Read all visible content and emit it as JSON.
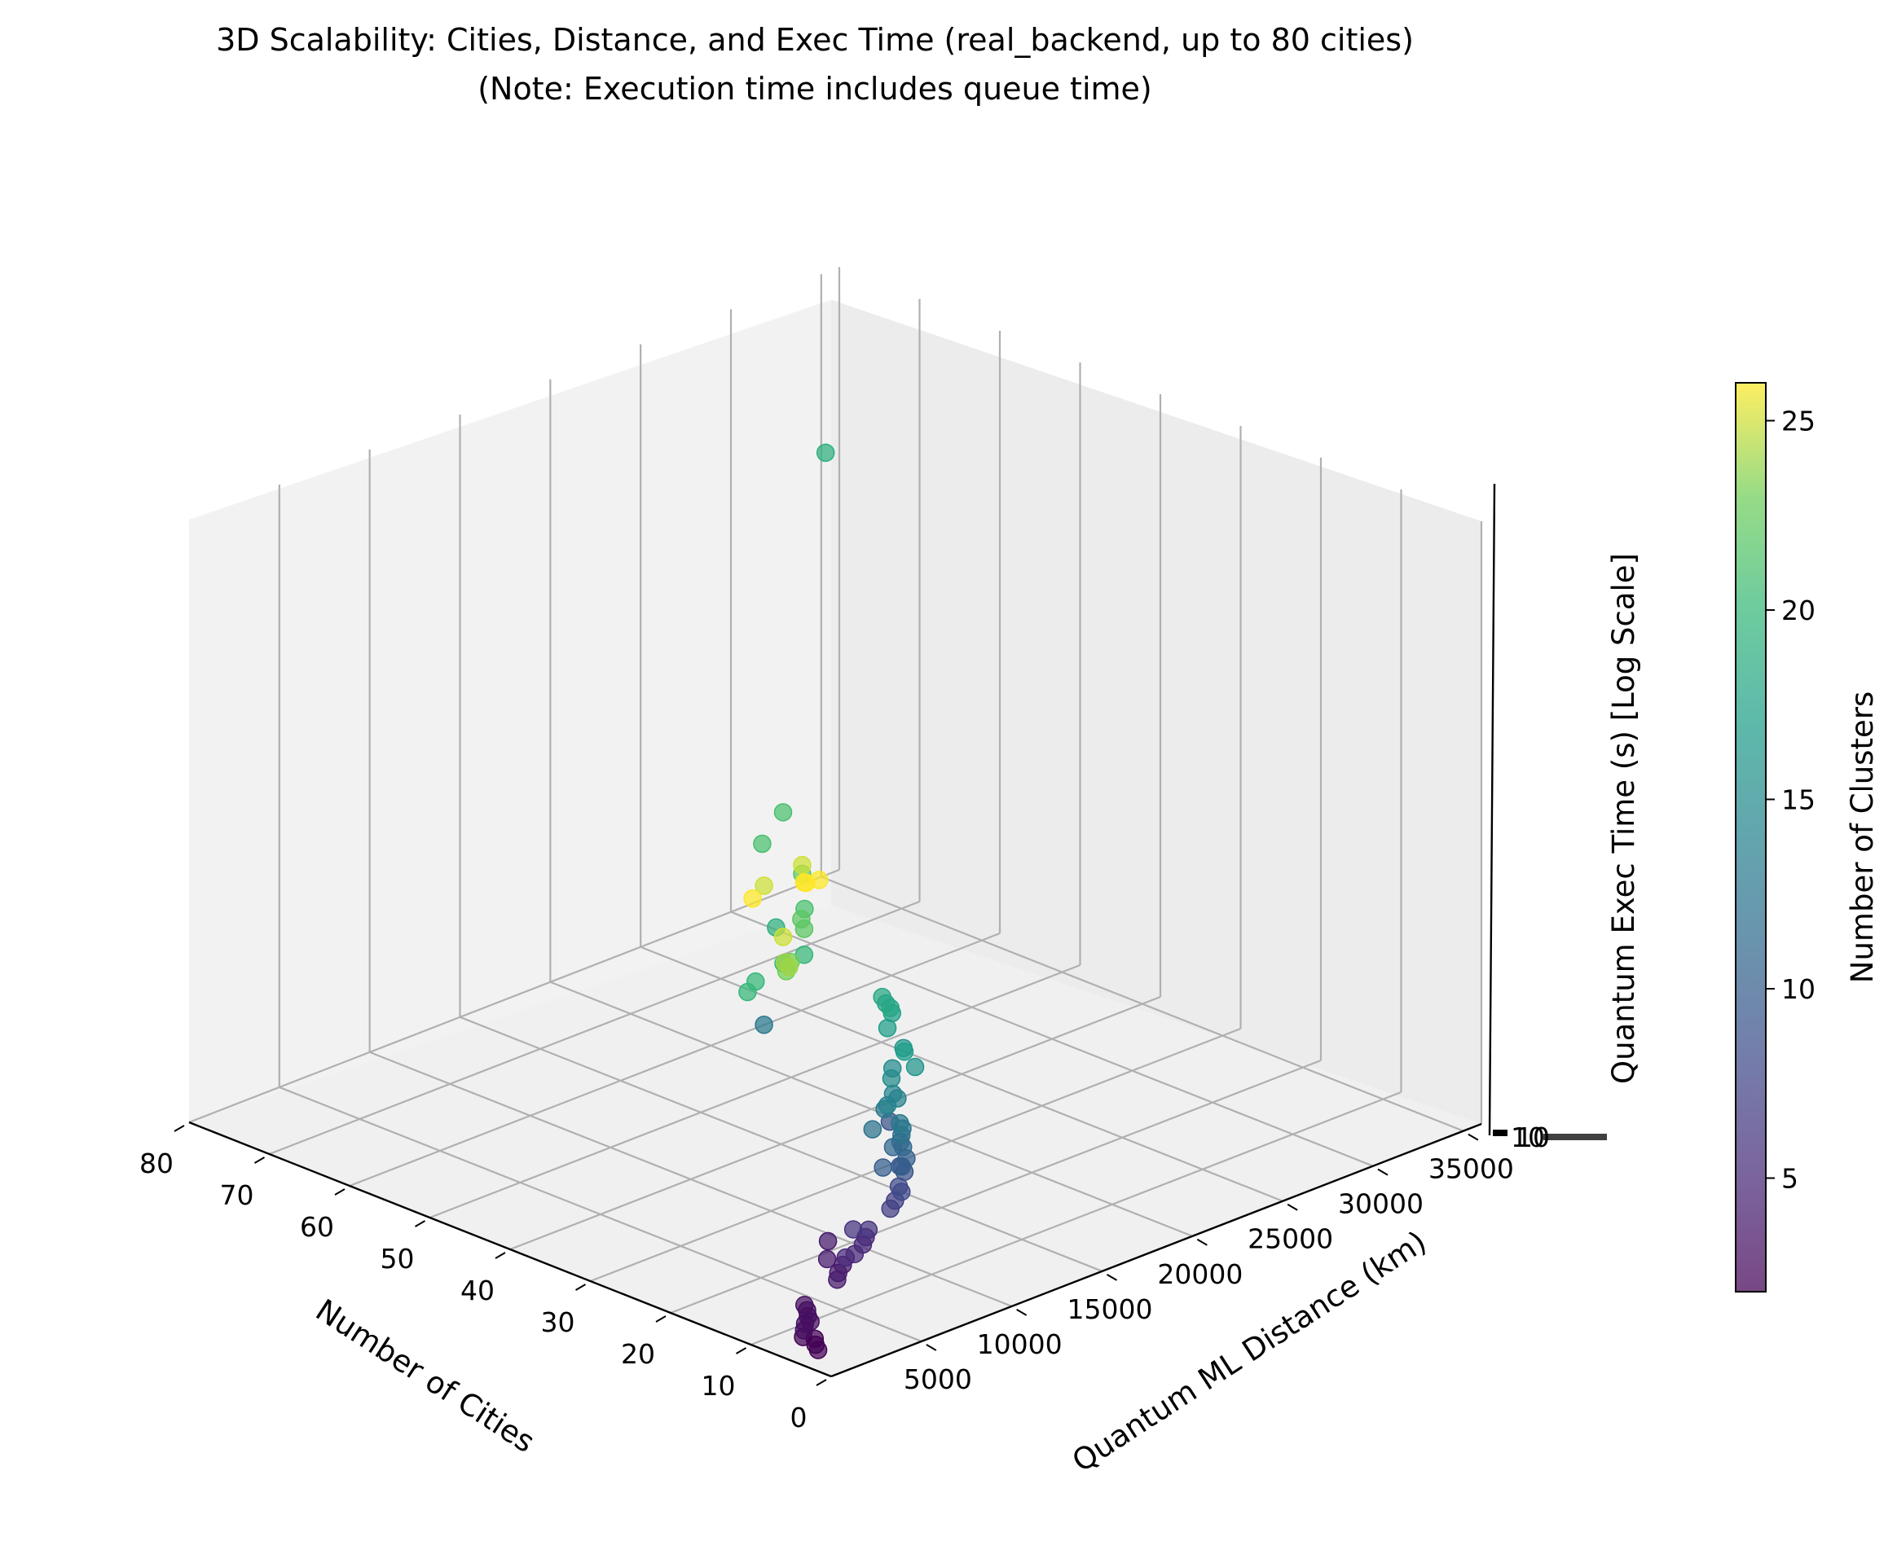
{
  "chart_data": {
    "type": "scatter",
    "projection": "3d",
    "title": "3D Scalability: Cities, Distance, and Exec Time (real_backend, up to 80 cities)",
    "subtitle": "(Note: Execution time includes queue time)",
    "xlabel": "Number of Cities",
    "ylabel": "Quantum ML Distance (km)",
    "zlabel": "Quantum Exec Time (s) [Log Scale]",
    "xlim": [
      0,
      80
    ],
    "ylim": [
      0,
      36000
    ],
    "x_ticks": [
      "0",
      "10",
      "20",
      "30",
      "40",
      "50",
      "60",
      "70",
      "80"
    ],
    "y_ticks": [
      "5000",
      "10000",
      "15000",
      "20000",
      "25000",
      "30000",
      "35000"
    ],
    "z_tick_label": "10",
    "z_tick_overlap_label": "10",
    "colorbar": {
      "label": "Number of Clusters",
      "colormap": "viridis",
      "range": [
        2,
        26
      ],
      "ticks": [
        "5",
        "10",
        "15",
        "20",
        "25"
      ]
    },
    "grid": true,
    "points": [
      {
        "cities": 5,
        "distance": 1500,
        "time": 0,
        "clusters": 2
      },
      {
        "cities": 6,
        "distance": 1800,
        "time": 0,
        "clusters": 2
      },
      {
        "cities": 7,
        "distance": 2200,
        "time": 0,
        "clusters": 2
      },
      {
        "cities": 8,
        "distance": 2000,
        "time": 0,
        "clusters": 2
      },
      {
        "cities": 9,
        "distance": 2500,
        "time": 0,
        "clusters": 3
      },
      {
        "cities": 10,
        "distance": 3000,
        "time": 0,
        "clusters": 3
      },
      {
        "cities": 10,
        "distance": 3300,
        "time": 0,
        "clusters": 3
      },
      {
        "cities": 11,
        "distance": 3600,
        "time": 0,
        "clusters": 3
      },
      {
        "cities": 12,
        "distance": 4000,
        "time": 0,
        "clusters": 3
      },
      {
        "cities": 13,
        "distance": 4300,
        "time": 0,
        "clusters": 3
      },
      {
        "cities": 13,
        "distance": 5600,
        "time": 1.6,
        "clusters": 4
      },
      {
        "cities": 14,
        "distance": 6000,
        "time": 0.9,
        "clusters": 4
      },
      {
        "cities": 15,
        "distance": 7000,
        "time": 0,
        "clusters": 4
      },
      {
        "cities": 16,
        "distance": 7500,
        "time": 0,
        "clusters": 4
      },
      {
        "cities": 17,
        "distance": 8200,
        "time": 0,
        "clusters": 4
      },
      {
        "cities": 18,
        "distance": 8800,
        "time": 0,
        "clusters": 5
      },
      {
        "cities": 18,
        "distance": 9300,
        "time": 0,
        "clusters": 5
      },
      {
        "cities": 19,
        "distance": 10200,
        "time": 0,
        "clusters": 5
      },
      {
        "cities": 20,
        "distance": 10800,
        "time": 0,
        "clusters": 5
      },
      {
        "cities": 21,
        "distance": 11400,
        "time": 0,
        "clusters": 6
      },
      {
        "cities": 22,
        "distance": 11000,
        "time": 0,
        "clusters": 6
      },
      {
        "cities": 23,
        "distance": 13500,
        "time": 0,
        "clusters": 7
      },
      {
        "cities": 24,
        "distance": 14200,
        "time": 0,
        "clusters": 7
      },
      {
        "cities": 25,
        "distance": 15000,
        "time": 0,
        "clusters": 8
      },
      {
        "cities": 26,
        "distance": 15300,
        "time": 0,
        "clusters": 8
      },
      {
        "cities": 26,
        "distance": 14800,
        "time": 2.0,
        "clusters": 9
      },
      {
        "cities": 27,
        "distance": 15800,
        "time": 0.4,
        "clusters": 9
      },
      {
        "cities": 28,
        "distance": 16500,
        "time": 0,
        "clusters": 9
      },
      {
        "cities": 29,
        "distance": 16800,
        "time": 0,
        "clusters": 10
      },
      {
        "cities": 30,
        "distance": 17500,
        "time": 0,
        "clusters": 10
      },
      {
        "cities": 30,
        "distance": 16200,
        "time": 0,
        "clusters": 10
      },
      {
        "cities": 31,
        "distance": 17200,
        "time": 0.3,
        "clusters": 11
      },
      {
        "cities": 32,
        "distance": 18200,
        "time": 0,
        "clusters": 11
      },
      {
        "cities": 33,
        "distance": 18500,
        "time": 0,
        "clusters": 11
      },
      {
        "cities": 34,
        "distance": 19000,
        "time": 0,
        "clusters": 12
      },
      {
        "cities": 34,
        "distance": 17400,
        "time": 0.5,
        "clusters": 12
      },
      {
        "cities": 35,
        "distance": 19500,
        "time": 0,
        "clusters": 12
      },
      {
        "cities": 36,
        "distance": 19800,
        "time": 0,
        "clusters": 13
      },
      {
        "cities": 37,
        "distance": 19400,
        "time": 0.4,
        "clusters": 13
      },
      {
        "cities": 38,
        "distance": 20000,
        "time": 0.3,
        "clusters": 14
      },
      {
        "cities": 39,
        "distance": 21000,
        "time": 0.2,
        "clusters": 14
      },
      {
        "cities": 40,
        "distance": 21200,
        "time": 0.2,
        "clusters": 14
      },
      {
        "cities": 41,
        "distance": 14500,
        "time": 3.5,
        "clusters": 13
      },
      {
        "cities": 42,
        "distance": 22000,
        "time": 0.3,
        "clusters": 15
      },
      {
        "cities": 43,
        "distance": 22500,
        "time": 0.4,
        "clusters": 15
      },
      {
        "cities": 44,
        "distance": 24200,
        "time": 0,
        "clusters": 16
      },
      {
        "cities": 45,
        "distance": 24000,
        "time": 0.5,
        "clusters": 16
      },
      {
        "cities": 46,
        "distance": 24500,
        "time": 0.2,
        "clusters": 17
      },
      {
        "cities": 47,
        "distance": 24000,
        "time": 0.9,
        "clusters": 17
      },
      {
        "cities": 48,
        "distance": 24700,
        "time": 1.1,
        "clusters": 17
      },
      {
        "cities": 49,
        "distance": 24600,
        "time": 1.5,
        "clusters": 18
      },
      {
        "cities": 50,
        "distance": 25500,
        "time": 0.9,
        "clusters": 18
      },
      {
        "cities": 51,
        "distance": 25700,
        "time": 0.9,
        "clusters": 18
      },
      {
        "cities": 52,
        "distance": 22800,
        "time": 17.5,
        "clusters": 19
      },
      {
        "cities": 53,
        "distance": 20500,
        "time": 4.0,
        "clusters": 19
      },
      {
        "cities": 54,
        "distance": 22500,
        "time": 2.7,
        "clusters": 20
      },
      {
        "cities": 55,
        "distance": 21800,
        "time": 2.5,
        "clusters": 20
      },
      {
        "cities": 56,
        "distance": 20700,
        "time": 2.1,
        "clusters": 20
      },
      {
        "cities": 57,
        "distance": 20700,
        "time": 1.7,
        "clusters": 20
      },
      {
        "cities": 58,
        "distance": 24300,
        "time": 3.3,
        "clusters": 21
      },
      {
        "cities": 59,
        "distance": 22400,
        "time": 5.5,
        "clusters": 21
      },
      {
        "cities": 60,
        "distance": 24000,
        "time": 6.0,
        "clusters": 21
      },
      {
        "cities": 61,
        "distance": 25500,
        "time": 3.8,
        "clusters": 22
      },
      {
        "cities": 62,
        "distance": 25900,
        "time": 2.3,
        "clusters": 22
      },
      {
        "cities": 63,
        "distance": 26500,
        "time": 1.8,
        "clusters": 22
      },
      {
        "cities": 64,
        "distance": 26200,
        "time": 0.8,
        "clusters": 23
      },
      {
        "cities": 65,
        "distance": 26400,
        "time": 0.4,
        "clusters": 23
      },
      {
        "cities": 66,
        "distance": 27000,
        "time": 0.3,
        "clusters": 24
      },
      {
        "cities": 67,
        "distance": 27200,
        "time": 0.3,
        "clusters": 24
      },
      {
        "cities": 68,
        "distance": 26500,
        "time": 2.6,
        "clusters": 25
      },
      {
        "cities": 69,
        "distance": 28000,
        "time": 0.7,
        "clusters": 25
      },
      {
        "cities": 70,
        "distance": 29500,
        "time": 2.4,
        "clusters": 25
      },
      {
        "cities": 71,
        "distance": 27200,
        "time": 1.8,
        "clusters": 26
      },
      {
        "cities": 72,
        "distance": 30500,
        "time": 1.5,
        "clusters": 26
      },
      {
        "cities": 74,
        "distance": 31500,
        "time": 1.1,
        "clusters": 26
      },
      {
        "cities": 78,
        "distance": 34000,
        "time": 0.3,
        "clusters": 26
      }
    ]
  }
}
